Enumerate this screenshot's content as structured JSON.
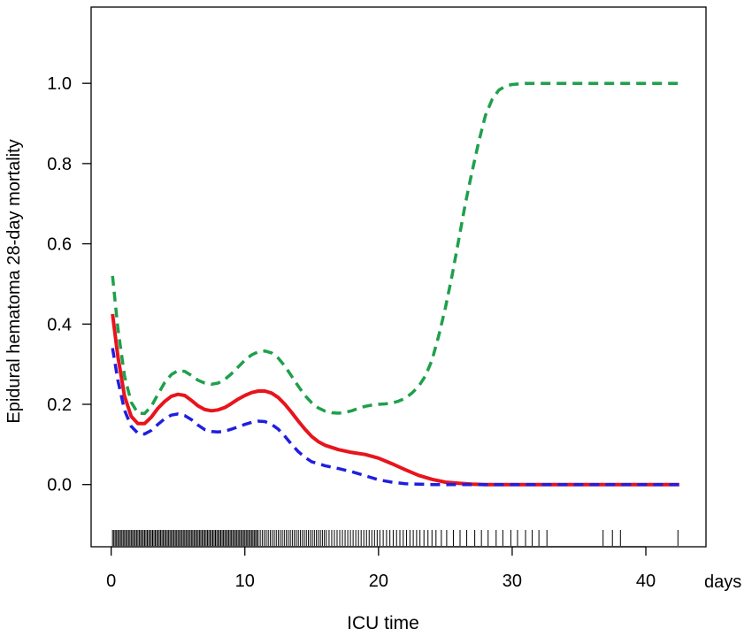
{
  "chart_data": {
    "type": "line",
    "xlabel": "ICU time",
    "x_unit": "days",
    "ylabel": "Epidural hematoma 28-day mortality",
    "xlim": [
      -1.5,
      44.5
    ],
    "ylim": [
      -0.155,
      1.19
    ],
    "x_ticks": [
      "0",
      "10",
      "20",
      "30",
      "40"
    ],
    "x_tick_values": [
      0,
      10,
      20,
      30,
      40
    ],
    "y_ticks": [
      "0.0",
      "0.2",
      "0.4",
      "0.6",
      "0.8",
      "1.0"
    ],
    "y_tick_values": [
      0.0,
      0.2,
      0.4,
      0.6,
      0.8,
      1.0
    ],
    "series": [
      {
        "style": "solid",
        "color": "#e8141c",
        "points": [
          [
            0.1,
            0.425
          ],
          [
            0.5,
            0.32
          ],
          [
            1.0,
            0.22
          ],
          [
            1.5,
            0.17
          ],
          [
            2.0,
            0.152
          ],
          [
            2.5,
            0.152
          ],
          [
            3.0,
            0.168
          ],
          [
            3.5,
            0.19
          ],
          [
            4.0,
            0.207
          ],
          [
            4.5,
            0.22
          ],
          [
            5.0,
            0.225
          ],
          [
            5.5,
            0.222
          ],
          [
            6.0,
            0.21
          ],
          [
            6.5,
            0.196
          ],
          [
            7.0,
            0.187
          ],
          [
            7.5,
            0.184
          ],
          [
            8.0,
            0.186
          ],
          [
            8.5,
            0.192
          ],
          [
            9.0,
            0.202
          ],
          [
            9.5,
            0.213
          ],
          [
            10.0,
            0.222
          ],
          [
            10.5,
            0.229
          ],
          [
            11.0,
            0.233
          ],
          [
            11.5,
            0.233
          ],
          [
            12.0,
            0.228
          ],
          [
            12.5,
            0.217
          ],
          [
            13.0,
            0.2
          ],
          [
            13.5,
            0.18
          ],
          [
            14.0,
            0.158
          ],
          [
            14.5,
            0.138
          ],
          [
            15.0,
            0.12
          ],
          [
            15.5,
            0.107
          ],
          [
            16.0,
            0.098
          ],
          [
            17.0,
            0.087
          ],
          [
            18.0,
            0.08
          ],
          [
            19.0,
            0.075
          ],
          [
            20.0,
            0.066
          ],
          [
            21.0,
            0.052
          ],
          [
            22.0,
            0.037
          ],
          [
            23.0,
            0.023
          ],
          [
            24.0,
            0.013
          ],
          [
            25.0,
            0.006
          ],
          [
            26.0,
            0.003
          ],
          [
            27.0,
            0.001
          ],
          [
            28.0,
            0.0
          ],
          [
            30.0,
            0.0
          ],
          [
            35.0,
            0.0
          ],
          [
            40.0,
            0.0
          ],
          [
            42.5,
            0.0
          ]
        ]
      },
      {
        "style": "dashed",
        "color": "#1f1fe0",
        "points": [
          [
            0.1,
            0.34
          ],
          [
            0.5,
            0.26
          ],
          [
            1.0,
            0.185
          ],
          [
            1.5,
            0.145
          ],
          [
            2.0,
            0.128
          ],
          [
            2.5,
            0.126
          ],
          [
            3.0,
            0.135
          ],
          [
            3.5,
            0.15
          ],
          [
            4.0,
            0.164
          ],
          [
            4.5,
            0.173
          ],
          [
            5.0,
            0.176
          ],
          [
            5.5,
            0.172
          ],
          [
            6.0,
            0.162
          ],
          [
            6.5,
            0.148
          ],
          [
            7.0,
            0.137
          ],
          [
            7.5,
            0.132
          ],
          [
            8.0,
            0.131
          ],
          [
            8.5,
            0.133
          ],
          [
            9.0,
            0.138
          ],
          [
            9.5,
            0.144
          ],
          [
            10.0,
            0.15
          ],
          [
            10.5,
            0.155
          ],
          [
            11.0,
            0.158
          ],
          [
            11.5,
            0.157
          ],
          [
            12.0,
            0.15
          ],
          [
            12.5,
            0.138
          ],
          [
            13.0,
            0.12
          ],
          [
            13.5,
            0.1
          ],
          [
            14.0,
            0.082
          ],
          [
            14.5,
            0.068
          ],
          [
            15.0,
            0.057
          ],
          [
            16.0,
            0.047
          ],
          [
            17.0,
            0.04
          ],
          [
            18.0,
            0.032
          ],
          [
            19.0,
            0.022
          ],
          [
            20.0,
            0.012
          ],
          [
            21.0,
            0.006
          ],
          [
            22.0,
            0.002
          ],
          [
            23.0,
            0.001
          ],
          [
            24.0,
            0.0
          ],
          [
            30.0,
            0.0
          ],
          [
            35.0,
            0.0
          ],
          [
            40.0,
            0.0
          ],
          [
            42.5,
            0.0
          ]
        ]
      },
      {
        "style": "dashed",
        "color": "#1ea04b",
        "points": [
          [
            0.1,
            0.52
          ],
          [
            0.5,
            0.39
          ],
          [
            1.0,
            0.27
          ],
          [
            1.5,
            0.205
          ],
          [
            2.0,
            0.178
          ],
          [
            2.5,
            0.177
          ],
          [
            3.0,
            0.195
          ],
          [
            3.5,
            0.225
          ],
          [
            4.0,
            0.254
          ],
          [
            4.5,
            0.274
          ],
          [
            5.0,
            0.284
          ],
          [
            5.5,
            0.282
          ],
          [
            6.0,
            0.272
          ],
          [
            6.5,
            0.26
          ],
          [
            7.0,
            0.253
          ],
          [
            7.5,
            0.25
          ],
          [
            8.0,
            0.253
          ],
          [
            8.5,
            0.262
          ],
          [
            9.0,
            0.276
          ],
          [
            9.5,
            0.293
          ],
          [
            10.0,
            0.31
          ],
          [
            10.5,
            0.323
          ],
          [
            11.0,
            0.331
          ],
          [
            11.5,
            0.333
          ],
          [
            12.0,
            0.328
          ],
          [
            12.5,
            0.315
          ],
          [
            13.0,
            0.295
          ],
          [
            13.5,
            0.27
          ],
          [
            14.0,
            0.245
          ],
          [
            14.5,
            0.222
          ],
          [
            15.0,
            0.204
          ],
          [
            15.5,
            0.191
          ],
          [
            16.0,
            0.183
          ],
          [
            16.5,
            0.179
          ],
          [
            17.0,
            0.178
          ],
          [
            17.5,
            0.18
          ],
          [
            18.0,
            0.184
          ],
          [
            18.5,
            0.19
          ],
          [
            19.0,
            0.195
          ],
          [
            19.5,
            0.198
          ],
          [
            20.0,
            0.2
          ],
          [
            20.5,
            0.201
          ],
          [
            21.0,
            0.203
          ],
          [
            21.5,
            0.208
          ],
          [
            22.0,
            0.215
          ],
          [
            22.5,
            0.228
          ],
          [
            23.0,
            0.245
          ],
          [
            23.5,
            0.27
          ],
          [
            24.0,
            0.31
          ],
          [
            24.5,
            0.37
          ],
          [
            25.0,
            0.44
          ],
          [
            25.5,
            0.52
          ],
          [
            26.0,
            0.61
          ],
          [
            26.5,
            0.7
          ],
          [
            27.0,
            0.78
          ],
          [
            27.5,
            0.855
          ],
          [
            28.0,
            0.92
          ],
          [
            28.5,
            0.96
          ],
          [
            29.0,
            0.983
          ],
          [
            29.5,
            0.993
          ],
          [
            30.0,
            0.997
          ],
          [
            31.0,
            1.0
          ],
          [
            35.0,
            1.0
          ],
          [
            40.0,
            1.0
          ],
          [
            42.5,
            1.0
          ]
        ]
      }
    ],
    "rug": [
      0.1,
      0.2,
      0.3,
      0.4,
      0.5,
      0.6,
      0.7,
      0.8,
      0.9,
      1.0,
      1.1,
      1.2,
      1.3,
      1.4,
      1.5,
      1.6,
      1.7,
      1.8,
      1.9,
      2.0,
      2.1,
      2.2,
      2.3,
      2.4,
      2.5,
      2.6,
      2.7,
      2.8,
      2.9,
      3.0,
      3.1,
      3.2,
      3.3,
      3.4,
      3.5,
      3.6,
      3.7,
      3.8,
      3.9,
      4.0,
      4.1,
      4.2,
      4.3,
      4.4,
      4.5,
      4.6,
      4.7,
      4.8,
      4.9,
      5.0,
      5.1,
      5.2,
      5.3,
      5.4,
      5.5,
      5.6,
      5.7,
      5.8,
      5.9,
      6.0,
      6.1,
      6.2,
      6.3,
      6.4,
      6.5,
      6.6,
      6.7,
      6.8,
      6.9,
      7.0,
      7.1,
      7.2,
      7.3,
      7.4,
      7.5,
      7.6,
      7.7,
      7.8,
      7.9,
      8.0,
      8.1,
      8.2,
      8.3,
      8.4,
      8.5,
      8.6,
      8.7,
      8.8,
      8.9,
      9.0,
      9.1,
      9.2,
      9.3,
      9.4,
      9.5,
      9.6,
      9.7,
      9.8,
      9.9,
      10.0,
      10.1,
      10.2,
      10.3,
      10.4,
      10.5,
      10.6,
      10.7,
      10.8,
      10.9,
      11.0,
      11.15,
      11.3,
      11.45,
      11.6,
      11.75,
      11.9,
      12.05,
      12.2,
      12.35,
      12.5,
      12.65,
      12.8,
      12.95,
      13.1,
      13.25,
      13.4,
      13.55,
      13.7,
      13.85,
      14.0,
      14.15,
      14.3,
      14.45,
      14.6,
      14.75,
      14.9,
      15.05,
      15.2,
      15.35,
      15.5,
      15.65,
      15.8,
      15.95,
      16.1,
      16.3,
      16.5,
      16.7,
      16.9,
      17.1,
      17.3,
      17.5,
      17.7,
      17.9,
      18.1,
      18.3,
      18.5,
      18.7,
      18.9,
      19.1,
      19.3,
      19.5,
      19.7,
      19.9,
      20.1,
      20.35,
      20.6,
      20.85,
      21.1,
      21.35,
      21.6,
      21.85,
      22.1,
      22.35,
      22.6,
      22.85,
      23.1,
      23.4,
      23.7,
      24.0,
      24.3,
      24.7,
      25.1,
      25.6,
      26.1,
      26.6,
      27.2,
      27.7,
      28.2,
      28.8,
      29.3,
      29.9,
      30.4,
      31.0,
      31.5,
      32.0,
      32.6,
      36.8,
      37.5,
      38.1,
      42.4
    ]
  }
}
